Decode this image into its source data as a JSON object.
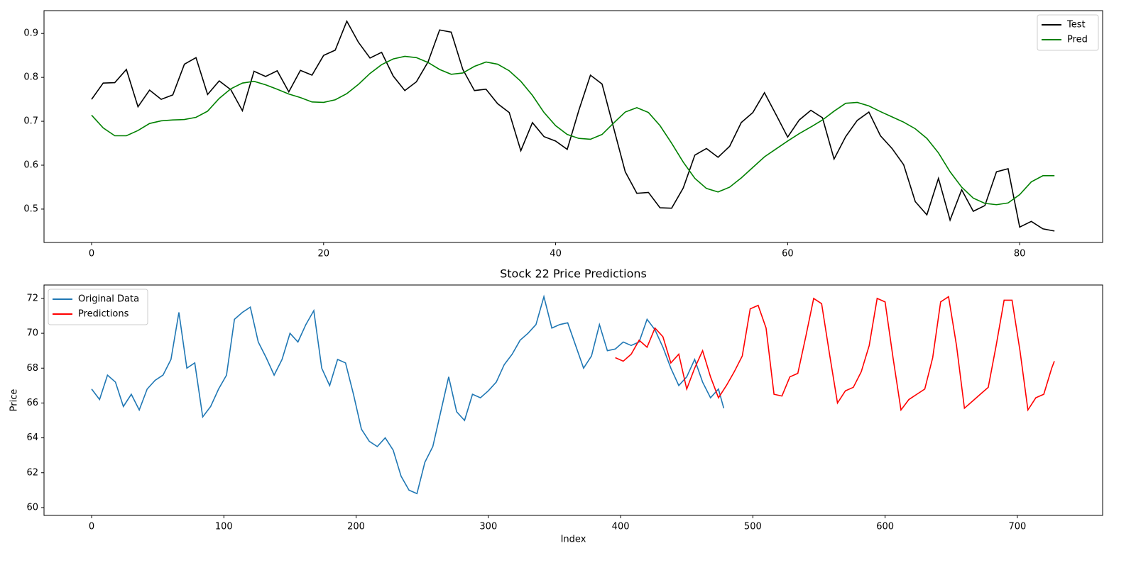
{
  "chart_data": [
    {
      "type": "line",
      "xlim": [
        -4.1,
        87.15
      ],
      "ylim": [
        0.424,
        0.952
      ],
      "xticks": [
        0,
        20,
        40,
        60,
        80
      ],
      "yticks": [
        0.5,
        0.6,
        0.7,
        0.8,
        0.9
      ],
      "legend": "upper right",
      "series": [
        {
          "name": "Test",
          "color": "#000000",
          "values": [
            0.75,
            0.787,
            0.788,
            0.818,
            0.733,
            0.771,
            0.75,
            0.76,
            0.83,
            0.845,
            0.761,
            0.792,
            0.772,
            0.724,
            0.814,
            0.802,
            0.815,
            0.767,
            0.816,
            0.805,
            0.85,
            0.862,
            0.928,
            0.88,
            0.844,
            0.857,
            0.803,
            0.77,
            0.79,
            0.835,
            0.908,
            0.903,
            0.818,
            0.77,
            0.773,
            0.74,
            0.72,
            0.633,
            0.697,
            0.665,
            0.655,
            0.636,
            0.725,
            0.805,
            0.785,
            0.685,
            0.585,
            0.536,
            0.538,
            0.503,
            0.502,
            0.548,
            0.623,
            0.638,
            0.618,
            0.643,
            0.697,
            0.72,
            0.765,
            0.715,
            0.664,
            0.703,
            0.725,
            0.708,
            0.614,
            0.665,
            0.702,
            0.721,
            0.667,
            0.638,
            0.601,
            0.517,
            0.487,
            0.57,
            0.475,
            0.544,
            0.495,
            0.508,
            0.585,
            0.592,
            0.459,
            0.472,
            0.455,
            0.45
          ]
        },
        {
          "name": "Pred",
          "color": "#008000",
          "values": [
            0.714,
            0.685,
            0.667,
            0.667,
            0.679,
            0.695,
            0.701,
            0.703,
            0.704,
            0.709,
            0.723,
            0.752,
            0.774,
            0.787,
            0.791,
            0.783,
            0.773,
            0.762,
            0.754,
            0.744,
            0.743,
            0.749,
            0.763,
            0.784,
            0.809,
            0.829,
            0.842,
            0.848,
            0.845,
            0.834,
            0.818,
            0.807,
            0.81,
            0.825,
            0.835,
            0.83,
            0.815,
            0.791,
            0.759,
            0.72,
            0.69,
            0.67,
            0.661,
            0.659,
            0.67,
            0.696,
            0.721,
            0.731,
            0.72,
            0.69,
            0.65,
            0.607,
            0.57,
            0.547,
            0.539,
            0.55,
            0.571,
            0.595,
            0.619,
            0.637,
            0.655,
            0.672,
            0.687,
            0.703,
            0.723,
            0.741,
            0.743,
            0.735,
            0.722,
            0.71,
            0.698,
            0.683,
            0.661,
            0.628,
            0.585,
            0.55,
            0.525,
            0.513,
            0.51,
            0.514,
            0.533,
            0.562,
            0.576,
            0.576
          ]
        }
      ]
    },
    {
      "type": "line",
      "title": "Stock 22 Price Predictions",
      "xlabel": "Index",
      "ylabel": "Price",
      "xlim": [
        -36,
        764.5
      ],
      "ylim": [
        59.55,
        72.77
      ],
      "xticks": [
        0,
        100,
        200,
        300,
        400,
        500,
        600,
        700
      ],
      "yticks": [
        60,
        62,
        64,
        66,
        68,
        70,
        72
      ],
      "legend": "upper left",
      "series": [
        {
          "name": "Original Data",
          "color": "#1f77b4",
          "x": [
            0,
            6,
            12,
            18,
            24,
            30,
            36,
            42,
            48,
            54,
            60,
            66,
            72,
            78,
            84,
            90,
            96,
            102,
            108,
            114,
            120,
            126,
            132,
            138,
            144,
            150,
            156,
            162,
            168,
            174,
            180,
            186,
            192,
            198,
            204,
            210,
            216,
            222,
            228,
            234,
            240,
            246,
            252,
            258,
            264,
            270,
            276,
            282,
            288,
            294,
            300,
            306,
            312,
            318,
            324,
            330,
            336,
            342,
            348,
            354,
            360,
            366,
            372,
            378,
            384,
            390,
            396,
            402,
            408,
            414,
            420,
            426,
            432,
            438,
            444,
            450,
            456,
            462,
            468,
            474,
            478
          ],
          "values": [
            66.8,
            66.2,
            67.6,
            67.2,
            65.8,
            66.5,
            65.6,
            66.8,
            67.3,
            67.6,
            68.5,
            71.2,
            68.0,
            68.3,
            65.2,
            65.8,
            66.8,
            67.6,
            70.8,
            71.2,
            71.5,
            69.5,
            68.6,
            67.6,
            68.5,
            70.0,
            69.5,
            70.5,
            71.3,
            68.0,
            67.0,
            68.5,
            68.3,
            66.5,
            64.5,
            63.8,
            63.5,
            64.0,
            63.3,
            61.8,
            61.0,
            60.8,
            62.6,
            63.5,
            65.5,
            67.5,
            65.5,
            65.0,
            66.5,
            66.3,
            66.7,
            67.2,
            68.2,
            68.8,
            69.6,
            70.0,
            70.5,
            72.1,
            70.3,
            70.5,
            70.6,
            69.3,
            68.0,
            68.7,
            70.5,
            69.0,
            69.1,
            69.5,
            69.3,
            69.5,
            70.8,
            70.2,
            69.2,
            68.0,
            67.0,
            67.5,
            68.5,
            67.2,
            66.3,
            66.8,
            65.7
          ]
        },
        {
          "name": "Predictions",
          "color": "#ff0000",
          "x": [
            396,
            402,
            408,
            414,
            420,
            426,
            432,
            438,
            444,
            450,
            456,
            462,
            468,
            474,
            480,
            486,
            492,
            498,
            504,
            510,
            516,
            522,
            528,
            534,
            540,
            546,
            552,
            558,
            564,
            570,
            576,
            582,
            588,
            594,
            600,
            606,
            612,
            618,
            624,
            630,
            636,
            642,
            648,
            654,
            660,
            666,
            672,
            678,
            684,
            690,
            696,
            702,
            708,
            714,
            720,
            726,
            728
          ],
          "values": [
            68.6,
            68.4,
            68.8,
            69.6,
            69.2,
            70.3,
            69.8,
            68.3,
            68.8,
            66.8,
            68.0,
            69.0,
            67.5,
            66.3,
            67.0,
            67.8,
            68.7,
            71.4,
            71.6,
            70.3,
            66.5,
            66.4,
            67.5,
            67.7,
            69.8,
            72.0,
            71.7,
            68.8,
            66.0,
            66.7,
            66.9,
            67.8,
            69.3,
            72.0,
            71.8,
            68.6,
            65.6,
            66.2,
            66.5,
            66.8,
            68.6,
            71.8,
            72.1,
            69.3,
            65.7,
            66.1,
            66.5,
            66.9,
            69.3,
            71.9,
            71.9,
            69.0,
            65.6,
            66.3,
            66.5,
            68.0,
            68.4
          ]
        }
      ]
    }
  ]
}
